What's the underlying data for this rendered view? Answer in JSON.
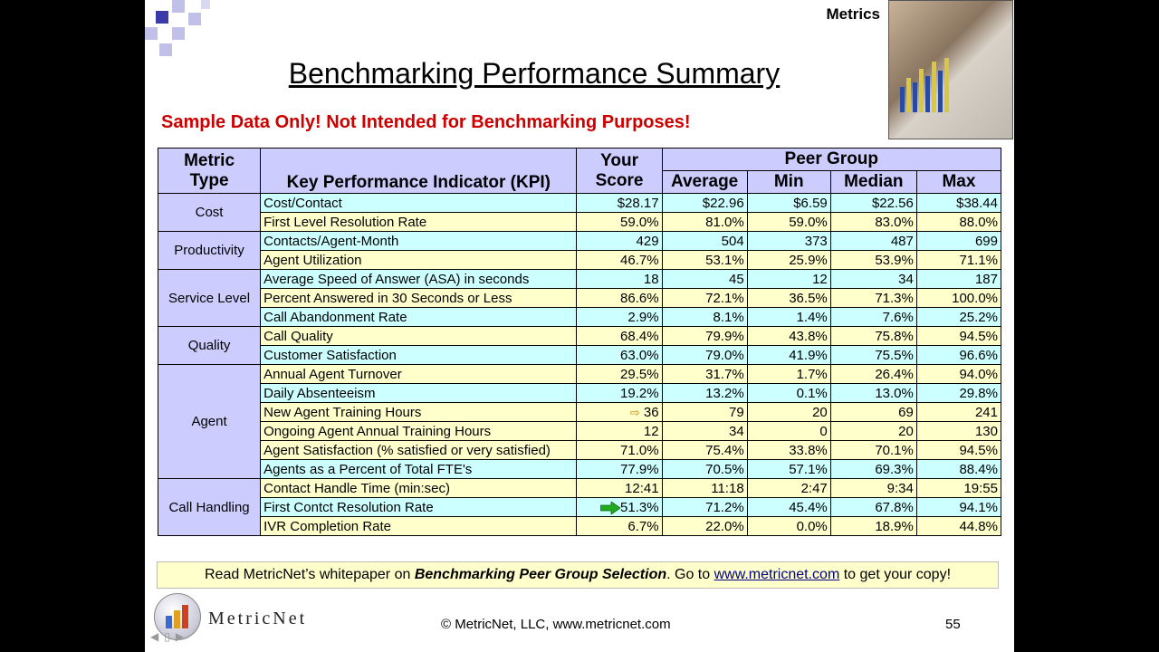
{
  "header": {
    "section_label": "Metrics"
  },
  "title": "Benchmarking Performance Summary",
  "subtitle": "Sample Data Only!  Not Intended for Benchmarking Purposes!",
  "table": {
    "headers": {
      "metric_type_1": "Metric",
      "metric_type_2": "Type",
      "kpi": "Key Performance Indicator (KPI)",
      "score_1": "Your",
      "score_2": "Score",
      "peer_group": "Peer Group",
      "average": "Average",
      "min": "Min",
      "median": "Median",
      "max": "Max"
    },
    "groups": [
      {
        "type": "Cost",
        "rows": [
          {
            "kpi": "Cost/Contact",
            "score": "$28.17",
            "average": "$22.96",
            "min": "$6.59",
            "median": "$22.56",
            "max": "$38.44"
          },
          {
            "kpi": "First Level Resolution Rate",
            "score": "59.0%",
            "average": "81.0%",
            "min": "59.0%",
            "median": "83.0%",
            "max": "88.0%"
          }
        ]
      },
      {
        "type": "Productivity",
        "rows": [
          {
            "kpi": "Contacts/Agent-Month",
            "score": "429",
            "average": "504",
            "min": "373",
            "median": "487",
            "max": "699"
          },
          {
            "kpi": "Agent Utilization",
            "score": "46.7%",
            "average": "53.1%",
            "min": "25.9%",
            "median": "53.9%",
            "max": "71.1%"
          }
        ]
      },
      {
        "type": "Service Level",
        "rows": [
          {
            "kpi": "Average Speed of Answer (ASA) in seconds",
            "score": "18",
            "average": "45",
            "min": "12",
            "median": "34",
            "max": "187"
          },
          {
            "kpi": "Percent Answered in 30 Seconds or Less",
            "score": "86.6%",
            "average": "72.1%",
            "min": "36.5%",
            "median": "71.3%",
            "max": "100.0%"
          },
          {
            "kpi": "Call Abandonment Rate",
            "score": "2.9%",
            "average": "8.1%",
            "min": "1.4%",
            "median": "7.6%",
            "max": "25.2%"
          }
        ]
      },
      {
        "type": "Quality",
        "rows": [
          {
            "kpi": "Call Quality",
            "score": "68.4%",
            "average": "79.9%",
            "min": "43.8%",
            "median": "75.8%",
            "max": "94.5%"
          },
          {
            "kpi": "Customer Satisfaction",
            "score": "63.0%",
            "average": "79.0%",
            "min": "41.9%",
            "median": "75.5%",
            "max": "96.6%"
          }
        ]
      },
      {
        "type": "Agent",
        "rows": [
          {
            "kpi": "Annual Agent Turnover",
            "score": "29.5%",
            "average": "31.7%",
            "min": "1.7%",
            "median": "26.4%",
            "max": "94.0%"
          },
          {
            "kpi": "Daily Absenteeism",
            "score": "19.2%",
            "average": "13.2%",
            "min": "0.1%",
            "median": "13.0%",
            "max": "29.8%"
          },
          {
            "kpi": "New Agent Training Hours",
            "score": "36",
            "average": "79",
            "min": "20",
            "median": "69",
            "max": "241"
          },
          {
            "kpi": "Ongoing Agent Annual Training Hours",
            "score": "12",
            "average": "34",
            "min": "0",
            "median": "20",
            "max": "130"
          },
          {
            "kpi": "Agent Satisfaction (% satisfied or very satisfied)",
            "score": "71.0%",
            "average": "75.4%",
            "min": "33.8%",
            "median": "70.1%",
            "max": "94.5%"
          },
          {
            "kpi": "Agents as a Percent of Total FTE's",
            "score": "77.9%",
            "average": "70.5%",
            "min": "57.1%",
            "median": "69.3%",
            "max": "88.4%"
          }
        ]
      },
      {
        "type": "Call Handling",
        "rows": [
          {
            "kpi": "Contact Handle Time (min:sec)",
            "score": "12:41",
            "average": "11:18",
            "min": "2:47",
            "median": "9:34",
            "max": "19:55"
          },
          {
            "kpi": "First Contct Resolution Rate",
            "score": "51.3%",
            "average": "71.2%",
            "min": "45.4%",
            "median": "67.8%",
            "max": "94.1%"
          },
          {
            "kpi": "IVR Completion Rate",
            "score": "6.7%",
            "average": "22.0%",
            "min": "0.0%",
            "median": "18.9%",
            "max": "44.8%"
          }
        ]
      }
    ]
  },
  "footer": {
    "text_1": "Read MetricNet’s whitepaper on ",
    "text_bold": "Benchmarking Peer Group Selection",
    "text_2": ".  Go to ",
    "link": "www.metricnet.com",
    "text_3": " to get your copy!"
  },
  "logo_text": "MetricNet",
  "copyright": "© MetricNet, LLC, www.metricnet.com",
  "page_number": "55",
  "colors": {
    "header_bg": "#ccccff",
    "row_cyan": "#ccffff",
    "row_yellow": "#ffffcc",
    "subtitle": "#cc0000"
  }
}
